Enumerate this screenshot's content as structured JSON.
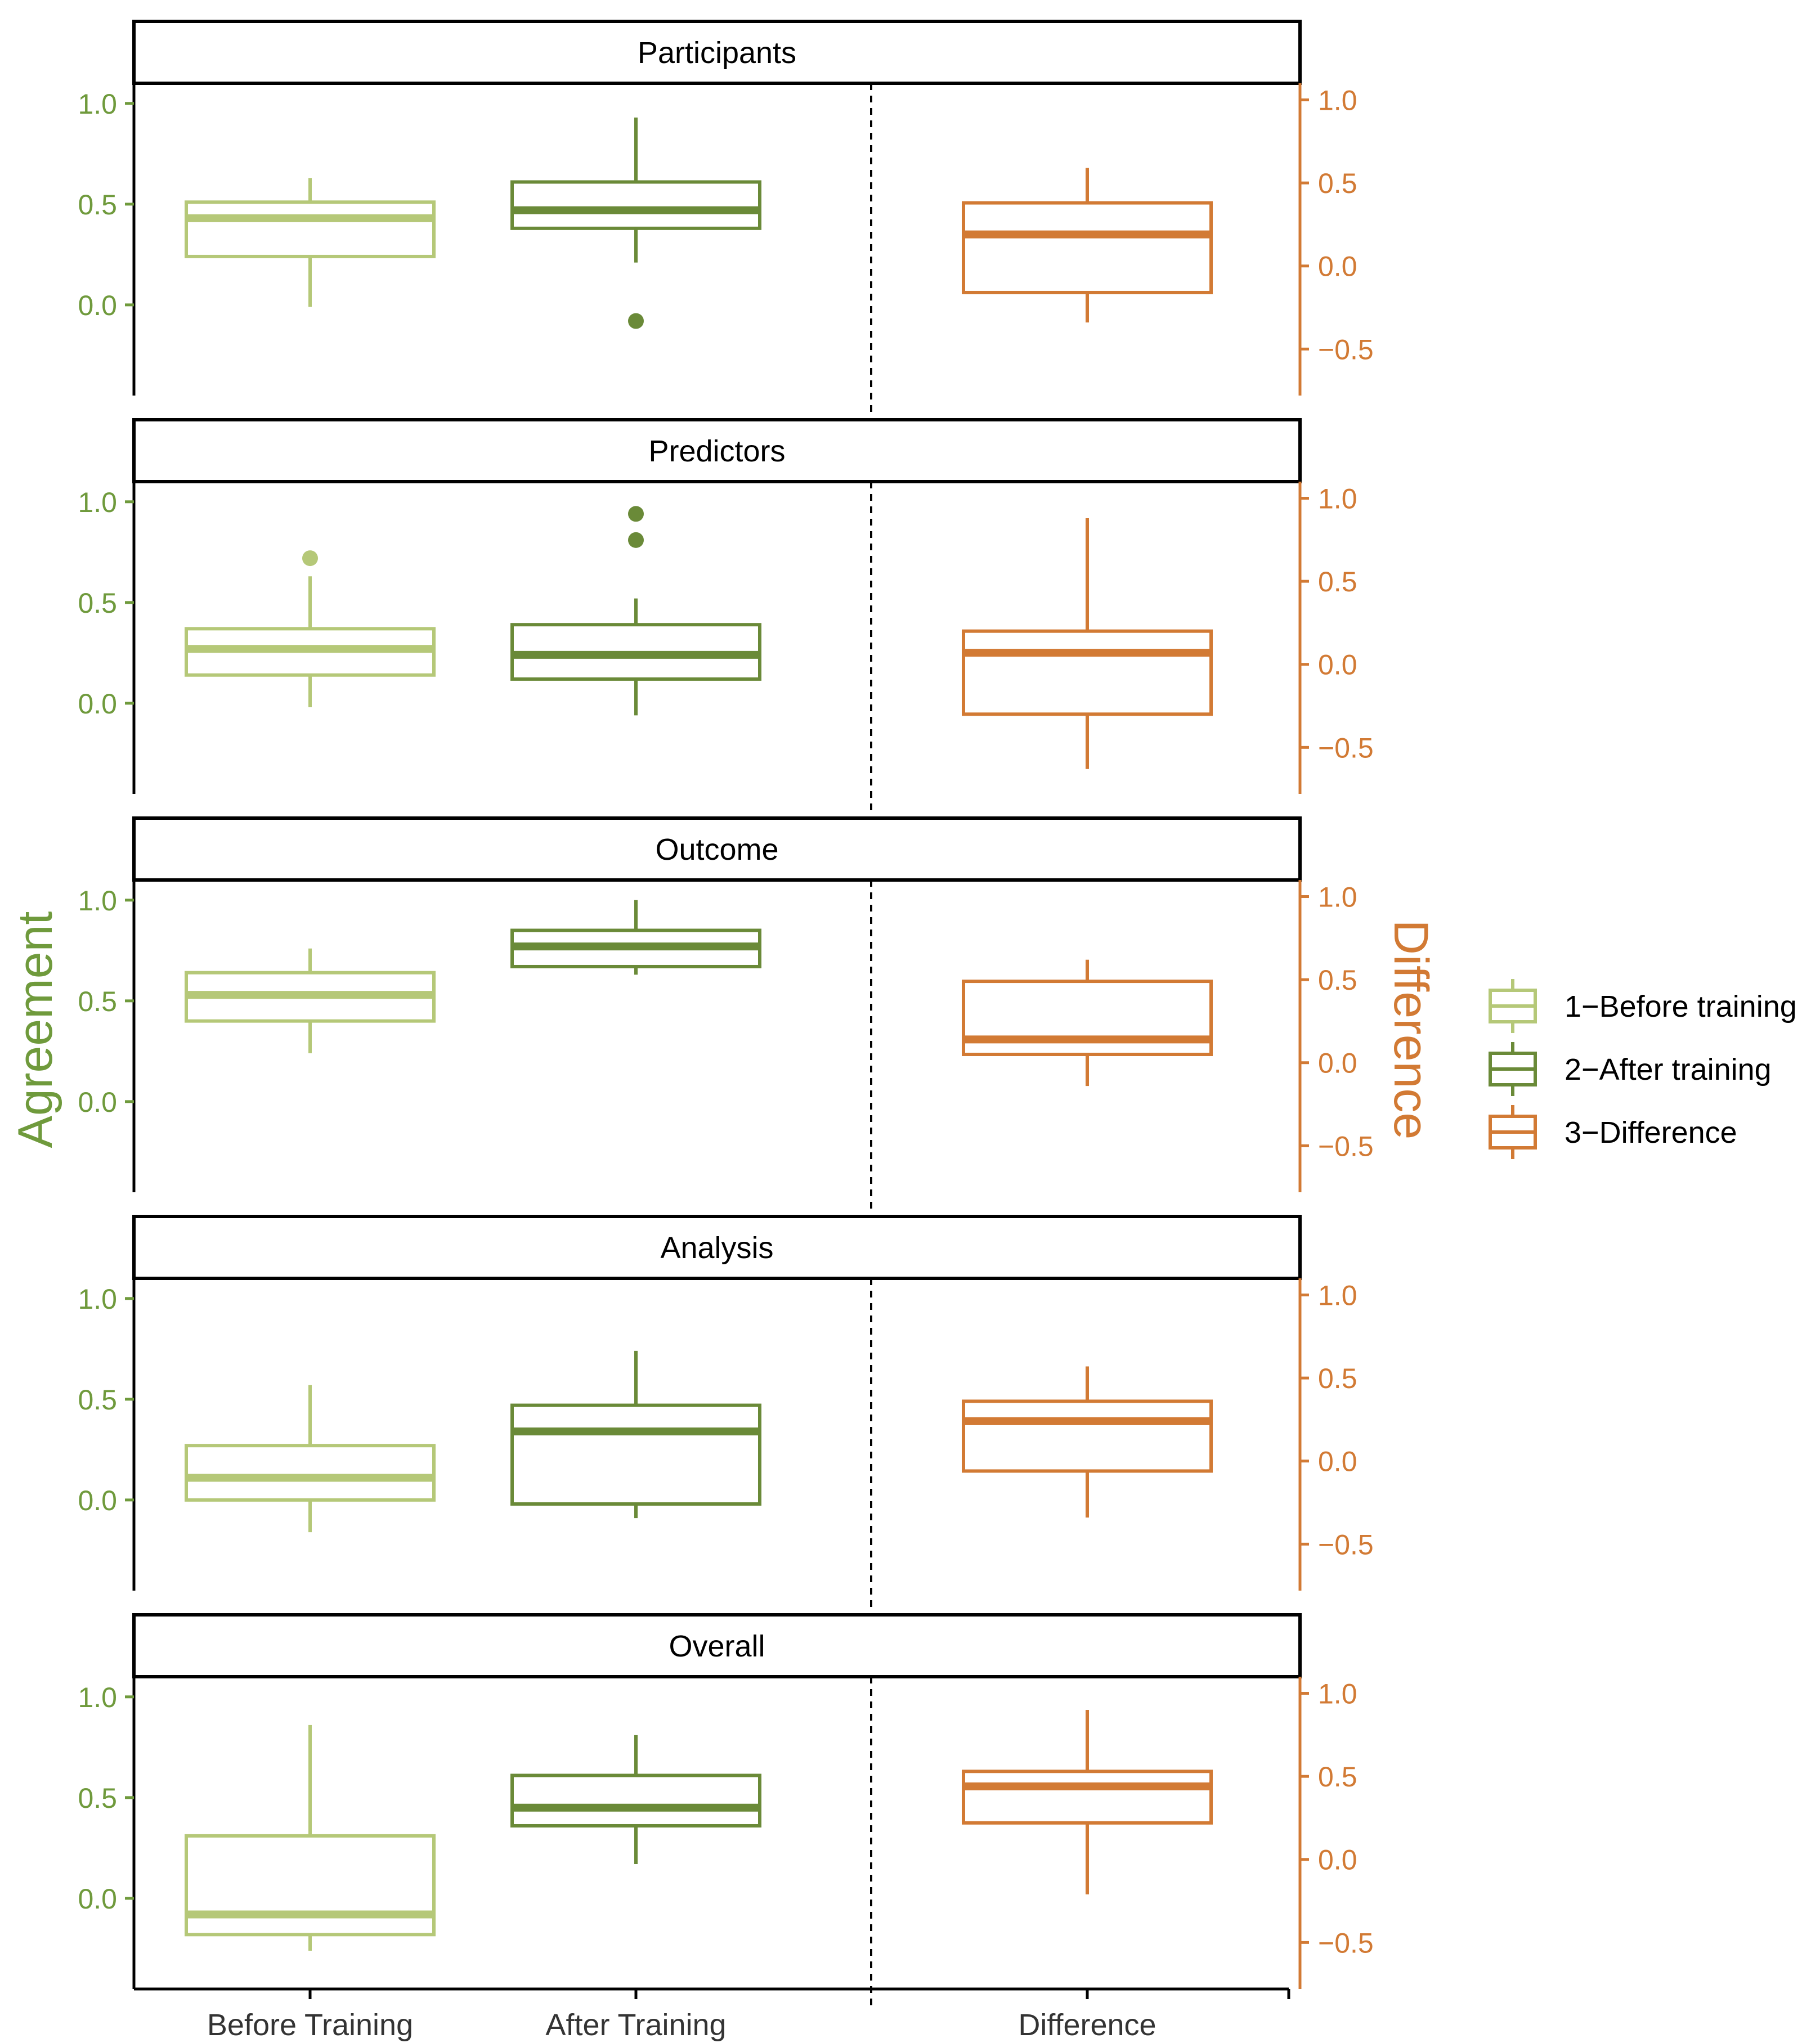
{
  "colors": {
    "before": "#b5c878",
    "after": "#6a8a38",
    "difference": "#d27a34",
    "left_axis": "#6f9a3c",
    "right_axis": "#d27a34",
    "frame": "#000000"
  },
  "chart_data": {
    "type": "boxplot",
    "left_axis": {
      "label": "Agreement",
      "range": [
        -0.45,
        1.1
      ],
      "ticks": [
        "1.0",
        "0.5",
        "0.0"
      ],
      "tick_values": [
        1.0,
        0.5,
        0.0
      ]
    },
    "right_axis": {
      "label": "Difference",
      "range": [
        -0.78,
        1.1
      ],
      "ticks": [
        "1.0",
        "0.5",
        "0.0",
        "−0.5"
      ],
      "tick_values": [
        1.0,
        0.5,
        0.0,
        -0.5
      ]
    },
    "x_categories": [
      "Before Training",
      "After Training",
      "Difference"
    ],
    "legend": [
      "1−Before training",
      "2−After training",
      "3−Difference"
    ],
    "panels": [
      {
        "title": "Participants",
        "before": {
          "min": -0.01,
          "q1": 0.24,
          "median": 0.43,
          "q3": 0.51,
          "max": 0.63,
          "outliers": []
        },
        "after": {
          "min": 0.21,
          "q1": 0.38,
          "median": 0.47,
          "q3": 0.61,
          "max": 0.93,
          "outliers": [
            -0.08
          ]
        },
        "difference": {
          "min": -0.34,
          "q1": -0.16,
          "median": 0.19,
          "q3": 0.38,
          "max": 0.59,
          "outliers": []
        }
      },
      {
        "title": "Predictors",
        "before": {
          "min": -0.02,
          "q1": 0.14,
          "median": 0.27,
          "q3": 0.37,
          "max": 0.63,
          "outliers": [
            0.72
          ]
        },
        "after": {
          "min": -0.06,
          "q1": 0.12,
          "median": 0.24,
          "q3": 0.39,
          "max": 0.52,
          "outliers": [
            0.94,
            0.81
          ]
        },
        "difference": {
          "min": -0.63,
          "q1": -0.3,
          "median": 0.07,
          "q3": 0.2,
          "max": 0.88,
          "outliers": []
        }
      },
      {
        "title": "Outcome",
        "before": {
          "min": 0.24,
          "q1": 0.4,
          "median": 0.53,
          "q3": 0.64,
          "max": 0.76,
          "outliers": []
        },
        "after": {
          "min": 0.63,
          "q1": 0.67,
          "median": 0.77,
          "q3": 0.85,
          "max": 1.0,
          "outliers": []
        },
        "difference": {
          "min": -0.14,
          "q1": 0.05,
          "median": 0.14,
          "q3": 0.49,
          "max": 0.62,
          "outliers": []
        }
      },
      {
        "title": "Analysis",
        "before": {
          "min": -0.16,
          "q1": 0.0,
          "median": 0.11,
          "q3": 0.27,
          "max": 0.57,
          "outliers": []
        },
        "after": {
          "min": -0.09,
          "q1": -0.02,
          "median": 0.34,
          "q3": 0.47,
          "max": 0.74,
          "outliers": []
        },
        "difference": {
          "min": -0.34,
          "q1": -0.06,
          "median": 0.24,
          "q3": 0.36,
          "max": 0.57,
          "outliers": []
        }
      },
      {
        "title": "Overall",
        "before": {
          "min": -0.26,
          "q1": -0.18,
          "median": -0.08,
          "q3": 0.31,
          "max": 0.86,
          "outliers": []
        },
        "after": {
          "min": 0.17,
          "q1": 0.36,
          "median": 0.45,
          "q3": 0.61,
          "max": 0.81,
          "outliers": []
        },
        "difference": {
          "min": -0.21,
          "q1": 0.22,
          "median": 0.44,
          "q3": 0.53,
          "max": 0.9,
          "outliers": []
        }
      }
    ]
  }
}
